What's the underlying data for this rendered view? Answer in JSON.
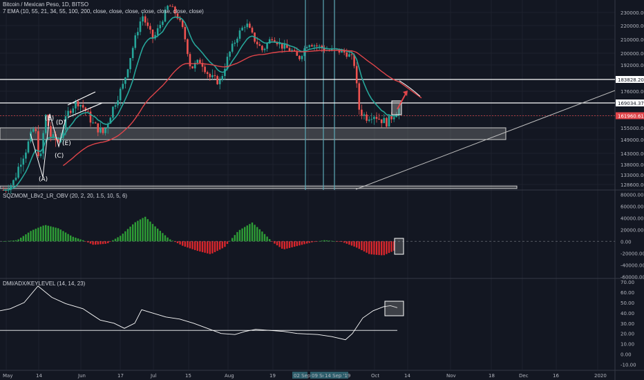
{
  "header": {
    "title": "Bitcoin / Mexican Peso, 1D, BITSO",
    "ema_label": "7 EMA (10, 55, 21, 34, 55, 100, 200, close, close, close, close, close, close, close)"
  },
  "panes": {
    "momentum_title": "SQZMOM_LBv2_LR_OBV (20, 2, 20, 1.5, 10, 5, 6)",
    "dmi_title": "DMI/ADX/KEYLEVEL (14, 14, 23)"
  },
  "colors": {
    "background": "#131722",
    "up_candle": "#26a69a",
    "down_candle": "#ef5350",
    "ema_fast": "#26a69a",
    "ema_slow": "#e0454a",
    "hist_green": "#2e9e36",
    "hist_red": "#d9262c",
    "line": "#ffffff",
    "zone": "#8c8c8c",
    "price_tag_red": "#e0454a",
    "ray": "#c0c0c0",
    "vertical_marker": "#5ba7b5"
  },
  "chart_data": [
    {
      "type": "candlestick",
      "title": "Bitcoin / Mexican Peso, 1D, BITSO",
      "x_ticks": [
        "May",
        "14",
        "Jun",
        "17",
        "Jul",
        "15",
        "Aug",
        "19",
        "02 Sep",
        "09 Se",
        "14 Sep '19",
        "Oct",
        "14",
        "Nov",
        "18",
        "Dec",
        "16",
        "2020"
      ],
      "y_ticks": [
        "230000.00",
        "220000.00",
        "210000.00",
        "200000.00",
        "192000.00",
        "183828.20",
        "176000.00",
        "169034.37",
        "161960.61",
        "155000.00",
        "149000.00",
        "143000.00",
        "138000.00",
        "133000.00",
        "128600.00"
      ],
      "price_tags": [
        {
          "label": "183828.20",
          "style": "white"
        },
        {
          "label": "169034.37",
          "style": "white"
        },
        {
          "label": "161960.61",
          "style": "red"
        }
      ],
      "horizontal_levels": [
        183828.2,
        169034.37,
        161960.61
      ],
      "support_zone": [
        149000,
        155000
      ],
      "lower_zone": [
        126000,
        127600
      ],
      "wave_labels": [
        "(A)",
        "(B)",
        "(C)",
        "(D)",
        "(E)"
      ],
      "indicator": "7 EMA (10, 55, 21, 34, 55, 100, 200)",
      "ylim": [
        125000,
        238000
      ]
    },
    {
      "type": "bar",
      "title": "SQZMOM_LBv2_LR_OBV (20, 2, 20, 1.5, 10, 5, 6)",
      "y_ticks": [
        "80000.00",
        "60000.00",
        "40000.00",
        "20000.00",
        "0.00",
        "-20000.00",
        "-40000.00",
        "-60000.00"
      ],
      "ylim": [
        -62000,
        85000
      ]
    },
    {
      "type": "line",
      "title": "DMI/ADX/KEYLEVEL (14, 14, 23)",
      "y_ticks": [
        "70.00",
        "60.00",
        "50.00",
        "40.00",
        "30.00",
        "20.00",
        "10.00",
        "0.00",
        "-10.00"
      ],
      "key_level": 23,
      "ylim": [
        -15,
        72
      ]
    }
  ]
}
